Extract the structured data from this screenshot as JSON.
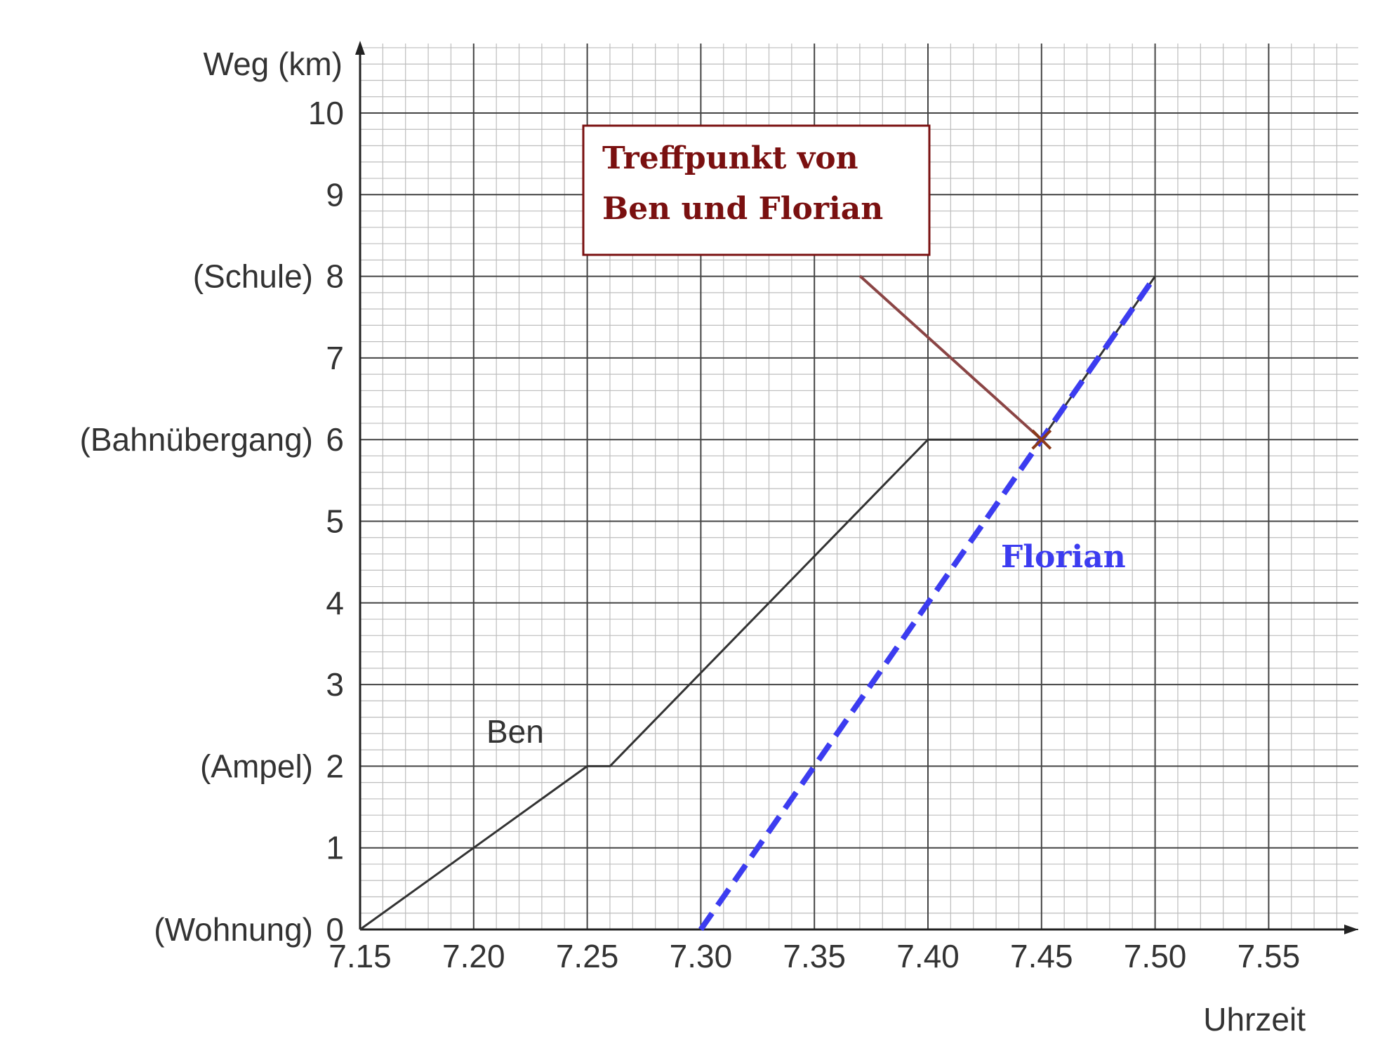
{
  "chart_data": {
    "type": "line",
    "xlabel": "Uhrzeit",
    "ylabel": "Weg (km)",
    "xlim": [
      7.15,
      7.58
    ],
    "ylim": [
      0,
      10.8
    ],
    "grid": true,
    "x_ticks": [
      "7.15",
      "7.20",
      "7.25",
      "7.30",
      "7.35",
      "7.40",
      "7.45",
      "7.50",
      "7.55"
    ],
    "y_ticks": [
      "0",
      "1",
      "2",
      "3",
      "4",
      "5",
      "6",
      "7",
      "8",
      "9",
      "10"
    ],
    "y_tick_places": [
      {
        "value": 0,
        "place": "(Wohnung)"
      },
      {
        "value": 2,
        "place": "(Ampel)"
      },
      {
        "value": 6,
        "place": "(Bahnübergang)"
      },
      {
        "value": 8,
        "place": "(Schule)"
      }
    ],
    "series": [
      {
        "name": "Ben",
        "color": "#333333",
        "style": "solid",
        "points": [
          {
            "x": 7.15,
            "y": 0
          },
          {
            "x": 7.25,
            "y": 2
          },
          {
            "x": 7.26,
            "y": 2
          },
          {
            "x": 7.4,
            "y": 6
          },
          {
            "x": 7.45,
            "y": 6
          },
          {
            "x": 7.5,
            "y": 8
          }
        ]
      },
      {
        "name": "Florian",
        "color": "#3c3cf0",
        "style": "dashed",
        "points": [
          {
            "x": 7.3,
            "y": 0
          },
          {
            "x": 7.5,
            "y": 8
          }
        ]
      }
    ],
    "annotation": {
      "text_lines": [
        "Treffpunkt von",
        "Ben und Florian"
      ],
      "color": "#7a1010",
      "point": {
        "x": 7.45,
        "y": 6
      }
    }
  }
}
